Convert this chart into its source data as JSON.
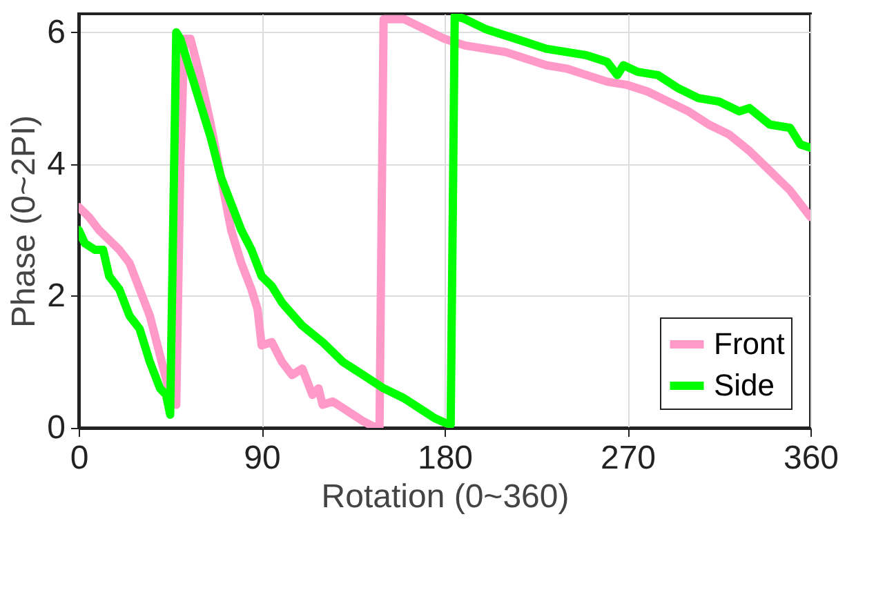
{
  "chart_data": {
    "type": "line",
    "xlabel": "Rotation (0~360)",
    "ylabel": "Phase (0~2PI)",
    "xlim": [
      0,
      360
    ],
    "xticks": [
      0,
      90,
      180,
      270,
      360
    ],
    "ylim": [
      0,
      6.28
    ],
    "yticks": [
      0,
      2,
      4,
      6
    ],
    "grid": true,
    "legend": "bottom right",
    "line_style": "solid",
    "marker": "none",
    "series": [
      {
        "name": "Front",
        "color": "#ff99c8",
        "x": [
          0,
          5,
          10,
          20,
          25,
          30,
          35,
          40,
          45,
          48,
          50,
          52,
          55,
          60,
          65,
          70,
          75,
          80,
          85,
          88,
          90,
          95,
          100,
          105,
          110,
          115,
          118,
          120,
          125,
          130,
          135,
          140,
          145,
          148,
          150,
          160,
          170,
          180,
          190,
          200,
          210,
          220,
          230,
          240,
          250,
          260,
          270,
          280,
          290,
          300,
          310,
          320,
          330,
          340,
          350,
          360
        ],
        "values": [
          3.35,
          3.2,
          3.0,
          2.7,
          2.5,
          2.1,
          1.7,
          1.1,
          0.5,
          0.35,
          4.0,
          5.9,
          5.9,
          5.3,
          4.6,
          3.8,
          3.0,
          2.5,
          2.1,
          1.8,
          1.25,
          1.3,
          1.0,
          0.8,
          0.9,
          0.5,
          0.6,
          0.35,
          0.4,
          0.3,
          0.2,
          0.1,
          0.02,
          0.02,
          6.2,
          6.2,
          6.05,
          5.9,
          5.8,
          5.75,
          5.7,
          5.6,
          5.5,
          5.45,
          5.35,
          5.25,
          5.2,
          5.1,
          4.95,
          4.8,
          4.6,
          4.45,
          4.2,
          3.9,
          3.6,
          3.2
        ]
      },
      {
        "name": "Side",
        "color": "#00ff00",
        "x": [
          0,
          3,
          8,
          12,
          15,
          20,
          25,
          30,
          35,
          40,
          43,
          45,
          48,
          50,
          55,
          60,
          65,
          70,
          75,
          80,
          85,
          90,
          95,
          100,
          110,
          120,
          130,
          140,
          150,
          160,
          170,
          175,
          180,
          183,
          185,
          190,
          200,
          210,
          220,
          230,
          240,
          250,
          260,
          265,
          268,
          275,
          285,
          295,
          305,
          315,
          325,
          330,
          340,
          350,
          355,
          360
        ],
        "values": [
          3.0,
          2.8,
          2.7,
          2.7,
          2.3,
          2.1,
          1.7,
          1.5,
          1.0,
          0.6,
          0.5,
          0.2,
          6.0,
          5.9,
          5.4,
          4.9,
          4.4,
          3.8,
          3.4,
          3.0,
          2.7,
          2.3,
          2.15,
          1.9,
          1.55,
          1.3,
          1.0,
          0.8,
          0.6,
          0.45,
          0.25,
          0.15,
          0.08,
          0.05,
          6.25,
          6.2,
          6.05,
          5.95,
          5.85,
          5.75,
          5.7,
          5.65,
          5.55,
          5.35,
          5.5,
          5.4,
          5.35,
          5.15,
          5.0,
          4.95,
          4.8,
          4.85,
          4.6,
          4.55,
          4.3,
          4.25
        ]
      }
    ]
  }
}
